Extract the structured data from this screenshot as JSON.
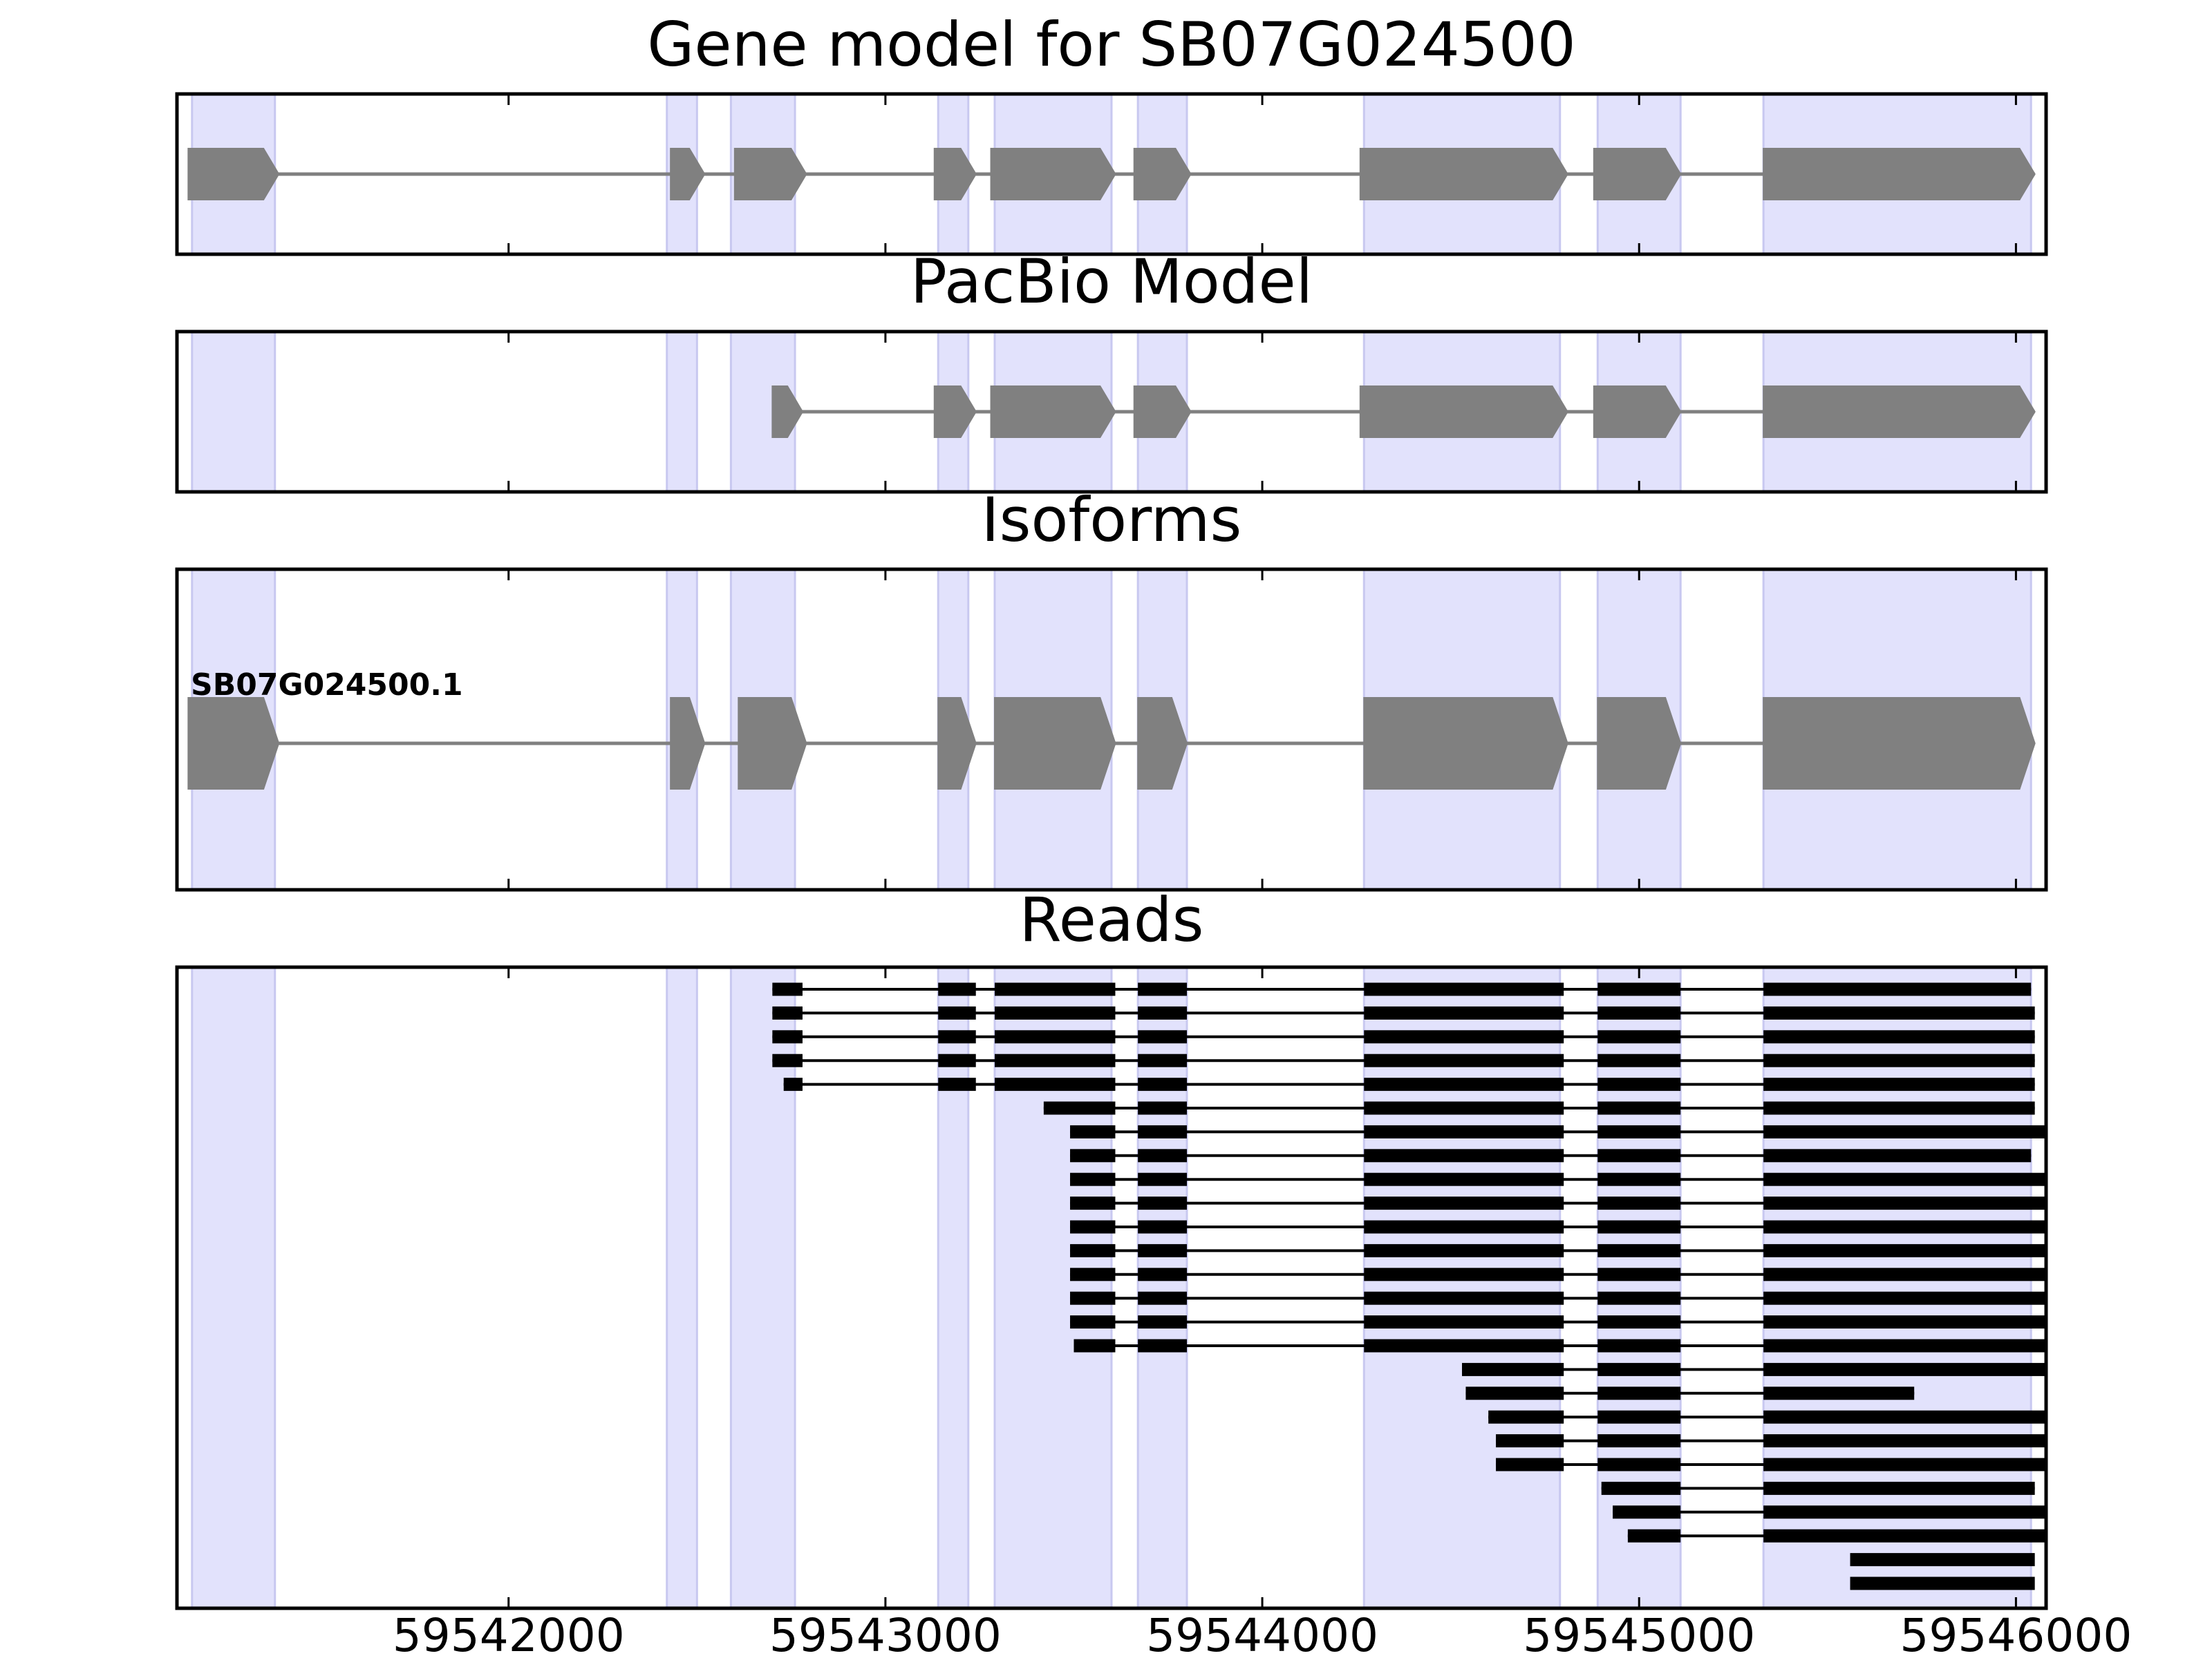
{
  "chart_data": {
    "type": "gene-track",
    "x_axis": {
      "xlim": [
        59541120,
        59546080
      ],
      "ticks": [
        59542000,
        59543000,
        59544000,
        59545000,
        59546000
      ],
      "tick_labels": [
        "59542000",
        "59543000",
        "59544000",
        "59545000",
        "59546000"
      ]
    },
    "shaded_exons": [
      [
        59541160,
        59541380
      ],
      [
        59542420,
        59542500
      ],
      [
        59542590,
        59542760
      ],
      [
        59543140,
        59543220
      ],
      [
        59543290,
        59543600
      ],
      [
        59543670,
        59543800
      ],
      [
        59544270,
        59544790
      ],
      [
        59544890,
        59545110
      ],
      [
        59545330,
        59546040
      ]
    ],
    "panels": [
      {
        "title": "Gene model for SB07G024500",
        "strand": "+",
        "exons": [
          [
            59541150,
            59541390
          ],
          [
            59542430,
            59542520
          ],
          [
            59542600,
            59542790
          ],
          [
            59543130,
            59543240
          ],
          [
            59543280,
            59543610
          ],
          [
            59543660,
            59543810
          ],
          [
            59544260,
            59544810
          ],
          [
            59544880,
            59545110
          ],
          [
            59545330,
            59546050
          ]
        ]
      },
      {
        "title": "PacBio Model",
        "strand": "+",
        "exons": [
          [
            59542700,
            59542780
          ],
          [
            59543130,
            59543240
          ],
          [
            59543280,
            59543610
          ],
          [
            59543660,
            59543810
          ],
          [
            59544260,
            59544810
          ],
          [
            59544880,
            59545110
          ],
          [
            59545330,
            59546050
          ]
        ]
      },
      {
        "title": "Isoforms",
        "isoform_label": "SB07G024500.1",
        "strand": "+",
        "exons": [
          [
            59541150,
            59541390
          ],
          [
            59542430,
            59542520
          ],
          [
            59542610,
            59542790
          ],
          [
            59543140,
            59543240
          ],
          [
            59543290,
            59543610
          ],
          [
            59543670,
            59543800
          ],
          [
            59544270,
            59544810
          ],
          [
            59544890,
            59545110
          ],
          [
            59545330,
            59546050
          ]
        ]
      },
      {
        "title": "Reads",
        "reads": [
          [
            [
              59542700,
              59542780
            ],
            [
              59543140,
              59543240
            ],
            [
              59543290,
              59543610
            ],
            [
              59543670,
              59543800
            ],
            [
              59544270,
              59544800
            ],
            [
              59544890,
              59545110
            ],
            [
              59545330,
              59546040
            ]
          ],
          [
            [
              59542700,
              59542780
            ],
            [
              59543140,
              59543240
            ],
            [
              59543290,
              59543610
            ],
            [
              59543670,
              59543800
            ],
            [
              59544270,
              59544800
            ],
            [
              59544890,
              59545110
            ],
            [
              59545330,
              59546050
            ]
          ],
          [
            [
              59542700,
              59542780
            ],
            [
              59543140,
              59543240
            ],
            [
              59543290,
              59543610
            ],
            [
              59543670,
              59543800
            ],
            [
              59544270,
              59544800
            ],
            [
              59544890,
              59545110
            ],
            [
              59545330,
              59546050
            ]
          ],
          [
            [
              59542700,
              59542780
            ],
            [
              59543140,
              59543240
            ],
            [
              59543290,
              59543610
            ],
            [
              59543670,
              59543800
            ],
            [
              59544270,
              59544800
            ],
            [
              59544890,
              59545110
            ],
            [
              59545330,
              59546050
            ]
          ],
          [
            [
              59542730,
              59542780
            ],
            [
              59543140,
              59543240
            ],
            [
              59543290,
              59543610
            ],
            [
              59543670,
              59543800
            ],
            [
              59544270,
              59544800
            ],
            [
              59544890,
              59545110
            ],
            [
              59545330,
              59546050
            ]
          ],
          [
            [
              59543420,
              59543610
            ],
            [
              59543670,
              59543800
            ],
            [
              59544270,
              59544800
            ],
            [
              59544890,
              59545110
            ],
            [
              59545330,
              59546050
            ]
          ],
          [
            [
              59543490,
              59543610
            ],
            [
              59543670,
              59543800
            ],
            [
              59544270,
              59544800
            ],
            [
              59544890,
              59545110
            ],
            [
              59545330,
              59546080
            ]
          ],
          [
            [
              59543490,
              59543610
            ],
            [
              59543670,
              59543800
            ],
            [
              59544270,
              59544800
            ],
            [
              59544890,
              59545110
            ],
            [
              59545330,
              59546040
            ]
          ],
          [
            [
              59543490,
              59543610
            ],
            [
              59543670,
              59543800
            ],
            [
              59544270,
              59544800
            ],
            [
              59544890,
              59545110
            ],
            [
              59545330,
              59546080
            ]
          ],
          [
            [
              59543490,
              59543610
            ],
            [
              59543670,
              59543800
            ],
            [
              59544270,
              59544800
            ],
            [
              59544890,
              59545110
            ],
            [
              59545330,
              59546080
            ]
          ],
          [
            [
              59543490,
              59543610
            ],
            [
              59543670,
              59543800
            ],
            [
              59544270,
              59544800
            ],
            [
              59544890,
              59545110
            ],
            [
              59545330,
              59546080
            ]
          ],
          [
            [
              59543490,
              59543610
            ],
            [
              59543670,
              59543800
            ],
            [
              59544270,
              59544800
            ],
            [
              59544890,
              59545110
            ],
            [
              59545330,
              59546080
            ]
          ],
          [
            [
              59543490,
              59543610
            ],
            [
              59543670,
              59543800
            ],
            [
              59544270,
              59544800
            ],
            [
              59544890,
              59545110
            ],
            [
              59545330,
              59546080
            ]
          ],
          [
            [
              59543490,
              59543610
            ],
            [
              59543670,
              59543800
            ],
            [
              59544270,
              59544800
            ],
            [
              59544890,
              59545110
            ],
            [
              59545330,
              59546080
            ]
          ],
          [
            [
              59543490,
              59543610
            ],
            [
              59543670,
              59543800
            ],
            [
              59544270,
              59544800
            ],
            [
              59544890,
              59545110
            ],
            [
              59545330,
              59546080
            ]
          ],
          [
            [
              59543500,
              59543610
            ],
            [
              59543670,
              59543800
            ],
            [
              59544270,
              59544800
            ],
            [
              59544890,
              59545110
            ],
            [
              59545330,
              59546080
            ]
          ],
          [
            [
              59544530,
              59544800
            ],
            [
              59544890,
              59545110
            ],
            [
              59545330,
              59546080
            ]
          ],
          [
            [
              59544540,
              59544800
            ],
            [
              59544890,
              59545110
            ],
            [
              59545330,
              59545730
            ]
          ],
          [
            [
              59544600,
              59544800
            ],
            [
              59544890,
              59545110
            ],
            [
              59545330,
              59546080
            ]
          ],
          [
            [
              59544620,
              59544800
            ],
            [
              59544890,
              59545110
            ],
            [
              59545330,
              59546080
            ]
          ],
          [
            [
              59544620,
              59544800
            ],
            [
              59544890,
              59545110
            ],
            [
              59545330,
              59546080
            ]
          ],
          [
            [
              59544900,
              59545110
            ],
            [
              59545330,
              59546050
            ]
          ],
          [
            [
              59544930,
              59545110
            ],
            [
              59545330,
              59546080
            ]
          ],
          [
            [
              59544970,
              59545110
            ],
            [
              59545330,
              59546080
            ]
          ],
          [
            [
              59545560,
              59546050
            ]
          ],
          [
            [
              59545560,
              59546050
            ]
          ]
        ]
      }
    ],
    "colors": {
      "exon_fill": "#808080",
      "shade": "#e2e2fc",
      "read": "#000000",
      "axis": "#000000"
    }
  }
}
